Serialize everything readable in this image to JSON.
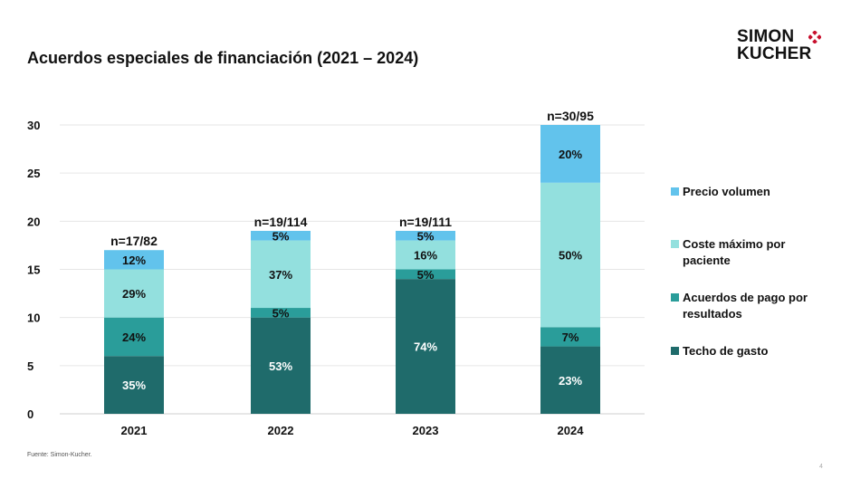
{
  "slide": {
    "title": "Acuerdos especiales de financiación (2021 – 2024)",
    "source": "Fuente: Simon-Kucher.",
    "page_number": "4",
    "logo": {
      "line1": "SIMON",
      "line2": "KUCHER",
      "mark_icon": "diamond-cluster-icon",
      "mark_color": "#c8102e"
    }
  },
  "chart_data": {
    "type": "bar",
    "stacked": true,
    "title": "Acuerdos especiales de financiación (2021 – 2024)",
    "xlabel": "",
    "ylabel": "",
    "categories": [
      "2021",
      "2022",
      "2023",
      "2024"
    ],
    "ylim": [
      0,
      30
    ],
    "yticks": [
      0,
      5,
      10,
      15,
      20,
      25,
      30
    ],
    "grid": true,
    "legend_position": "right",
    "totals": [
      17,
      19,
      19,
      30
    ],
    "total_labels": [
      "n=17/82",
      "n=19/114",
      "n=19/111",
      "n=30/95"
    ],
    "series": [
      {
        "name": "Techo de gasto",
        "color": "#1f6b6b",
        "text_color": "#ffffff",
        "values": [
          6,
          10,
          14,
          7
        ],
        "labels": [
          "35%",
          "53%",
          "74%",
          "23%"
        ]
      },
      {
        "name": "Acuerdos de pago por resultados",
        "color": "#2a9d9a",
        "text_color": "#111111",
        "values": [
          4,
          1,
          1,
          2
        ],
        "labels": [
          "24%",
          "5%",
          "5%",
          "7%"
        ]
      },
      {
        "name": "Coste máximo por paciente",
        "color": "#93e0de",
        "text_color": "#111111",
        "values": [
          5,
          7,
          3,
          15
        ],
        "labels": [
          "29%",
          "37%",
          "16%",
          "50%"
        ]
      },
      {
        "name": "Precio volumen",
        "color": "#62c3ec",
        "text_color": "#111111",
        "values": [
          2,
          1,
          1,
          6
        ],
        "labels": [
          "12%",
          "5%",
          "5%",
          "20%"
        ]
      }
    ],
    "legend": [
      {
        "label_lines": [
          "Precio volumen"
        ],
        "color": "#62c3ec"
      },
      {
        "label_lines": [
          "Coste máximo por",
          "paciente"
        ],
        "color": "#93e0de"
      },
      {
        "label_lines": [
          "Acuerdos de pago por",
          "resultados"
        ],
        "color": "#2a9d9a"
      },
      {
        "label_lines": [
          "Techo de gasto"
        ],
        "color": "#1f6b6b"
      }
    ]
  }
}
